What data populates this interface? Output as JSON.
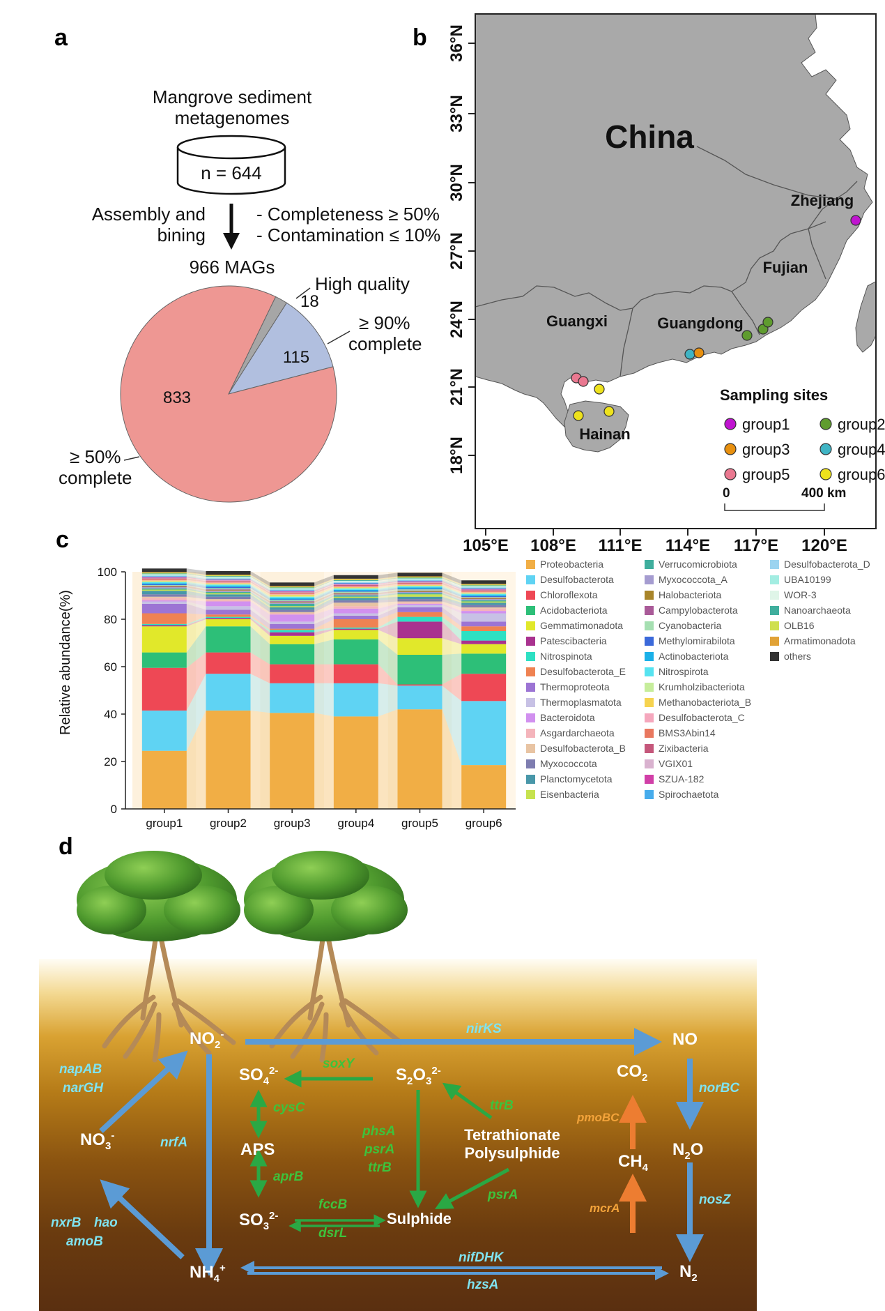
{
  "panels": {
    "a": "a",
    "b": "b",
    "c": "c",
    "d": "d"
  },
  "panel_a": {
    "source_line1": "Mangrove sediment",
    "source_line2": "metagenomes",
    "db_label": "n = 644",
    "process_line1": "Assembly and",
    "process_line2": "bining",
    "criteria1": "- Completeness ≥ 50%",
    "criteria2": "- Contamination ≤ 10%",
    "total": "966 MAGs",
    "pie_labels": {
      "high_quality": "High quality",
      "complete90_line1": "≥ 90%",
      "complete90_line2": "complete",
      "complete50_line1": "≥ 50%",
      "complete50_line2": "complete"
    },
    "pie_values": {
      "high_quality": "18",
      "complete90": "115",
      "complete50": "833"
    }
  },
  "panel_b": {
    "country": "China",
    "provinces": {
      "zhejiang": "Zhejiang",
      "fujian": "Fujian",
      "guangdong": "Guangdong",
      "guangxi": "Guangxi",
      "hainan": "Hainan"
    },
    "lat_labels": [
      "36°N",
      "33°N",
      "30°N",
      "27°N",
      "24°N",
      "21°N",
      "18°N"
    ],
    "lon_labels": [
      "105°E",
      "108°E",
      "111°E",
      "114°E",
      "117°E",
      "120°E"
    ],
    "legend_title": "Sampling sites",
    "groups": [
      {
        "label": "group1",
        "color": "#c014d0"
      },
      {
        "label": "group2",
        "color": "#5f9c2e"
      },
      {
        "label": "group3",
        "color": "#e8900f"
      },
      {
        "label": "group4",
        "color": "#3fb4c4"
      },
      {
        "label": "group5",
        "color": "#ea7890"
      },
      {
        "label": "group6",
        "color": "#eee21c"
      }
    ],
    "scale_start": "0",
    "scale_end": "400 km"
  },
  "chart_data": {
    "type": "bar",
    "stacked": true,
    "categories": [
      "group1",
      "group2",
      "group3",
      "group4",
      "group5",
      "group6"
    ],
    "ylabel": "Relative abundance(%)",
    "ylim": [
      0,
      100
    ],
    "yticks": [
      "0",
      "20",
      "40",
      "60",
      "80",
      "100"
    ],
    "series": [
      {
        "name": "Proteobacteria",
        "color": "#f1ae45",
        "values": [
          24.5,
          41.5,
          40.5,
          39,
          42,
          18.5
        ]
      },
      {
        "name": "Desulfobacterota",
        "color": "#5fd3f3",
        "values": [
          17,
          15.5,
          12.5,
          14,
          10,
          27
        ]
      },
      {
        "name": "Chloroflexota",
        "color": "#ee4855",
        "values": [
          18,
          9,
          8,
          8,
          0.5,
          11.5
        ]
      },
      {
        "name": "Acidobacteriota",
        "color": "#2dbf78",
        "values": [
          6.5,
          11,
          8.5,
          10.5,
          12.5,
          8.5
        ]
      },
      {
        "name": "Gemmatimonadota",
        "color": "#e1e82a",
        "values": [
          11,
          3,
          3.5,
          4,
          7,
          4
        ]
      },
      {
        "name": "Patescibacteria",
        "color": "#a9328f",
        "values": [
          0.5,
          0.5,
          1.5,
          0.5,
          7,
          1.5
        ]
      },
      {
        "name": "Nitrospinota",
        "color": "#2de0c3",
        "values": [
          0.5,
          0.5,
          1,
          0.5,
          2,
          4
        ]
      },
      {
        "name": "Desulfobacterota_E",
        "color": "#ef8252",
        "values": [
          4.5,
          1,
          0.5,
          3.5,
          2,
          2
        ]
      },
      {
        "name": "Thermoproteota",
        "color": "#9c74d4",
        "values": [
          4,
          2,
          2,
          1.5,
          2,
          2
        ]
      },
      {
        "name": "Thermoplasmatota",
        "color": "#c7c1e5",
        "values": [
          1,
          1.5,
          1,
          1,
          1,
          3.5
        ]
      },
      {
        "name": "Bacteroidota",
        "color": "#d190ef",
        "values": [
          0.5,
          2,
          3,
          2,
          0.5,
          1
        ]
      },
      {
        "name": "Asgardarchaeota",
        "color": "#f4b4bb",
        "values": [
          1,
          0.5,
          0.5,
          1,
          0.5,
          1
        ]
      },
      {
        "name": "Desulfobacterota_B",
        "color": "#e8c4a3",
        "values": [
          0.5,
          0.5,
          0.5,
          1.5,
          0.5,
          0.5
        ]
      },
      {
        "name": "Myxococcota",
        "color": "#7e7db0",
        "values": [
          1,
          1,
          1,
          1,
          1,
          1
        ]
      },
      {
        "name": "Planctomycetota",
        "color": "#4897a9",
        "values": [
          1.5,
          1,
          1,
          1,
          1,
          1
        ]
      },
      {
        "name": "Eisenbacteria",
        "color": "#c6e24e",
        "values": [
          0.5,
          0.5,
          0.5,
          0.5,
          1,
          0.5
        ]
      },
      {
        "name": "Verrucomicrobiota",
        "color": "#3fae9d",
        "values": [
          0.5,
          0.5,
          1,
          0.5,
          0.5,
          0.5
        ]
      },
      {
        "name": "Myxococcota_A",
        "color": "#a59cd0",
        "values": [
          0.5,
          0.5,
          0.5,
          0.5,
          0.5,
          0.5
        ]
      },
      {
        "name": "Halobacteriota",
        "color": "#a8852a",
        "values": [
          0.3,
          0.3,
          0.3,
          0.3,
          0.3,
          0.3
        ]
      },
      {
        "name": "Campylobacterota",
        "color": "#a95a98",
        "values": [
          0.3,
          0.3,
          0.3,
          0.3,
          0.3,
          0.3
        ]
      },
      {
        "name": "Cyanobacteria",
        "color": "#a5dfb1",
        "values": [
          0.3,
          0.5,
          0.5,
          0.5,
          0.5,
          0.3
        ]
      },
      {
        "name": "Methylomirabilota",
        "color": "#3b69da",
        "values": [
          0.3,
          0.5,
          0.3,
          0.3,
          0.3,
          0.3
        ]
      },
      {
        "name": "Actinobacteriota",
        "color": "#1ab0e8",
        "values": [
          0.5,
          0.5,
          0.5,
          0.5,
          0.5,
          0.5
        ]
      },
      {
        "name": "Nitrospirota",
        "color": "#56e3f0",
        "values": [
          0.5,
          0.5,
          0.5,
          0.5,
          0.5,
          0.5
        ]
      },
      {
        "name": "Krumholzibacteriota",
        "color": "#c6ed9b",
        "values": [
          0.3,
          0.3,
          0.5,
          0.3,
          0.3,
          0.3
        ]
      },
      {
        "name": "Methanobacteriota_B",
        "color": "#f6d34f",
        "values": [
          0.3,
          0.3,
          0.5,
          0.3,
          0.3,
          0.3
        ]
      },
      {
        "name": "Desulfobacterota_C",
        "color": "#f5a7bd",
        "values": [
          0.3,
          0.3,
          0.3,
          0.3,
          0.3,
          0.3
        ]
      },
      {
        "name": "BMS3Abin14",
        "color": "#e9785f",
        "values": [
          0.3,
          0.3,
          0.3,
          0.3,
          0.3,
          0.3
        ]
      },
      {
        "name": "Zixibacteria",
        "color": "#c5577b",
        "values": [
          0.3,
          0.3,
          0.3,
          0.3,
          0.3,
          0.3
        ]
      },
      {
        "name": "VGIX01",
        "color": "#d9b2cf",
        "values": [
          0.3,
          0.3,
          0.3,
          0.3,
          0.3,
          0.3
        ]
      },
      {
        "name": "SZUA-182",
        "color": "#d13fa7",
        "values": [
          0.3,
          0.3,
          0.3,
          0.3,
          0.3,
          0.3
        ]
      },
      {
        "name": "Spirochaetota",
        "color": "#47acec",
        "values": [
          0.3,
          0.3,
          0.3,
          0.3,
          0.3,
          0.3
        ]
      },
      {
        "name": "Desulfobacterota_D",
        "color": "#9cd4f0",
        "values": [
          0.3,
          0.3,
          0.3,
          0.3,
          0.3,
          0.3
        ]
      },
      {
        "name": "UBA10199",
        "color": "#a3ede2",
        "values": [
          0.3,
          0.3,
          0.3,
          0.3,
          0.3,
          0.3
        ]
      },
      {
        "name": "WOR-3",
        "color": "#dff5e8",
        "values": [
          0.3,
          0.3,
          0.3,
          0.3,
          0.3,
          0.3
        ]
      },
      {
        "name": "Nanoarchaeota",
        "color": "#3fae9d",
        "values": [
          0.3,
          0.3,
          0.3,
          0.3,
          0.3,
          0.3
        ]
      },
      {
        "name": "OLB16",
        "color": "#cfe04e",
        "values": [
          0.3,
          0.3,
          0.3,
          0.3,
          0.3,
          0.3
        ]
      },
      {
        "name": "Armatimonadota",
        "color": "#e1a236",
        "values": [
          0.3,
          0.3,
          0.3,
          0.3,
          0.3,
          0.3
        ]
      },
      {
        "name": "others",
        "color": "#333333",
        "values": [
          1.5,
          1.5,
          1.5,
          1.5,
          1.5,
          1.5
        ]
      }
    ]
  },
  "panel_d": {
    "species": {
      "no2": "NO",
      "no2_sub": "2",
      "no2_sup": "-",
      "no3": "NO",
      "no3_sub": "3",
      "no3_sup": "-",
      "nh4": "NH",
      "nh4_sub": "4",
      "nh4_sup": "+",
      "no": "NO",
      "n2o": "N",
      "n2o_sub": "2",
      "n2o_tail": "O",
      "n2": "N",
      "n2_sub": "2",
      "so4": "SO",
      "so4_sub": "4",
      "so4_sup": "2-",
      "aps": "APS",
      "so3": "SO",
      "so3_sub": "3",
      "so3_sup": "2-",
      "s2o3": "S",
      "s2o3_sub1": "2",
      "s2o3_mid": "O",
      "s2o3_sub2": "3",
      "s2o3_sup": "2-",
      "tetra_line1": "Tetrathionate",
      "tetra_line2": "Polysulphide",
      "sulphide": "Sulphide",
      "co2": "CO",
      "co2_sub": "2",
      "ch4": "CH",
      "ch4_sub": "4"
    },
    "genes": {
      "nirks": "nirKS",
      "napab": "napAB",
      "nargh": "narGH",
      "nrfa": "nrfA",
      "nxrb": "nxrB",
      "hao": "hao",
      "amob": "amoB",
      "norbc": "norBC",
      "nosz": "nosZ",
      "nifdhk": "nifDHK",
      "hzsa": "hzsA",
      "soxy": "soxY",
      "cysc": "cysC",
      "aprb": "aprB",
      "fccb": "fccB",
      "dsrl": "dsrL",
      "ttrb1": "ttrB",
      "phsa": "phsA",
      "psra1": "psrA",
      "ttrb2": "ttrB",
      "psra2": "psrA",
      "pmobc": "pmoBC",
      "mcra": "mcrA"
    },
    "colors": {
      "nitrogen": "#5b9bd5",
      "sulfur": "#2aa844",
      "methane": "#ed7d31",
      "nitrogen_text": "#7fe3f0",
      "sulfur_text": "#3ec23c",
      "methane_text": "#f3a33a"
    }
  }
}
